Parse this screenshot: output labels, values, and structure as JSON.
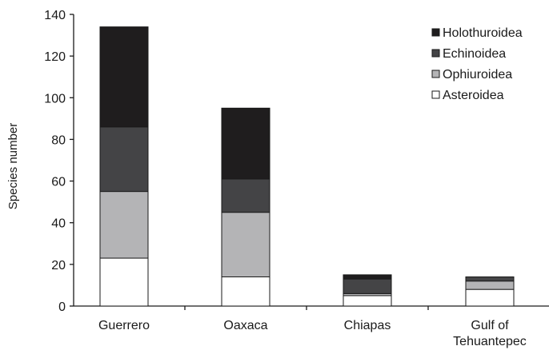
{
  "chart_data": {
    "type": "bar",
    "stacked": true,
    "title": "",
    "xlabel": "",
    "ylabel": "Species number",
    "ylim": [
      0,
      140
    ],
    "yticks": [
      0,
      20,
      40,
      60,
      80,
      100,
      120,
      140
    ],
    "grid": false,
    "legend_position": "top-right",
    "categories": [
      [
        "Guerrero"
      ],
      [
        "Oaxaca"
      ],
      [
        "Chiapas"
      ],
      [
        "Gulf of",
        "Tehuantepec"
      ]
    ],
    "series": [
      {
        "name": "Asteroidea",
        "color": "#ffffff",
        "values": [
          23,
          14,
          5,
          8
        ]
      },
      {
        "name": "Ophiuroidea",
        "color": "#b4b4b6",
        "values": [
          32,
          31,
          1,
          4
        ]
      },
      {
        "name": "Echinoidea",
        "color": "#444446",
        "values": [
          31,
          16,
          7,
          2
        ]
      },
      {
        "name": "Holothuroidea",
        "color": "#1f1d1e",
        "values": [
          48,
          34,
          2,
          0
        ]
      }
    ],
    "legend_order": [
      "Holothuroidea",
      "Echinoidea",
      "Ophiuroidea",
      "Asteroidea"
    ]
  }
}
